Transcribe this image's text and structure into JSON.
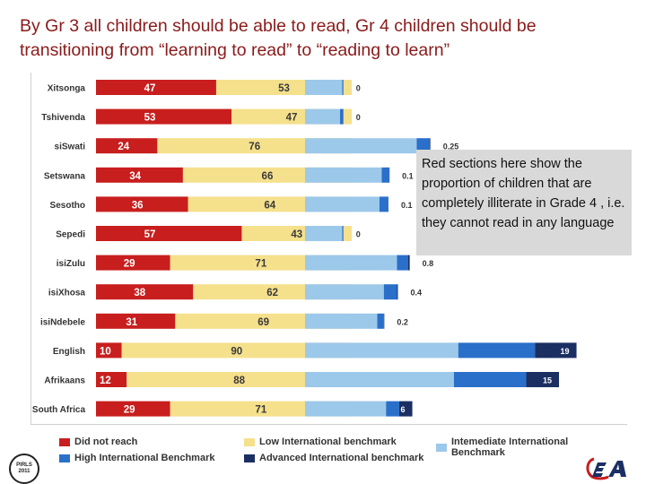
{
  "title": "By Gr 3 all children should be able to read, Gr 4 children should be transitioning from “learning to read” to “reading to learn”",
  "annotation": "Red sections here show the proportion of children that are completely illiterate in Grade 4 , i.e. they cannot read in any language",
  "logo_left_text": [
    "PIRLS",
    "2011"
  ],
  "colors": {
    "did_not_reach": "#c81e1e",
    "low": "#f5e08c",
    "intermediate": "#9cc8ea",
    "high": "#2a6fc9",
    "advanced": "#1b2f63",
    "title": "#8b1a1a"
  },
  "chart_data": {
    "type": "bar",
    "orientation": "horizontal",
    "stacked": true,
    "categories": [
      "Xitsonga",
      "Tshivenda",
      "siSwati",
      "Setswana",
      "Sesotho",
      "Sepedi",
      "isiZulu",
      "isiXhosa",
      "isiNdebele",
      "English",
      "Afrikaans",
      "South Africa"
    ],
    "left_series": [
      {
        "name": "Did not reach",
        "values": [
          47,
          53,
          24,
          34,
          36,
          57,
          29,
          38,
          31,
          10,
          12,
          29
        ]
      },
      {
        "name": "Low International benchmark",
        "values": [
          53,
          47,
          76,
          66,
          64,
          43,
          71,
          62,
          69,
          90,
          88,
          71
        ]
      }
    ],
    "right_series": [
      {
        "name": "Intemediate International Benchmark",
        "values": [
          17,
          16,
          51,
          35,
          34,
          17,
          42,
          36,
          33,
          70,
          68,
          37
        ]
      },
      {
        "name": "High International Benchmark",
        "values": [
          0.5,
          1.5,
          6,
          3.5,
          4,
          0.5,
          5,
          6,
          3,
          35,
          33,
          6
        ]
      },
      {
        "name": "Advanced International benchmark",
        "values": [
          0,
          0,
          0.25,
          0.1,
          0.1,
          0,
          0.8,
          0.4,
          0.2,
          19,
          15,
          6
        ]
      }
    ],
    "left_labels": [
      [
        "47",
        "53"
      ],
      [
        "53",
        "47"
      ],
      [
        "24",
        "76"
      ],
      [
        "34",
        "66"
      ],
      [
        "36",
        "64"
      ],
      [
        "57",
        "43"
      ],
      [
        "29",
        "71"
      ],
      [
        "38",
        "62"
      ],
      [
        "31",
        "69"
      ],
      [
        "10",
        "90"
      ],
      [
        "12",
        "88"
      ],
      [
        "29",
        "71"
      ]
    ],
    "right_labels": [
      "0",
      "0",
      "0.25",
      "0.1",
      "0.1",
      "0",
      "0.8",
      "0.4",
      "0.2",
      "19",
      "15",
      "6"
    ],
    "right_label_inside": [
      false,
      false,
      false,
      false,
      false,
      false,
      false,
      false,
      false,
      true,
      true,
      true
    ],
    "legend": [
      {
        "label": "Did not reach",
        "color_key": "did_not_reach"
      },
      {
        "label": "Low International benchmark",
        "color_key": "low"
      },
      {
        "label": "Intemediate International Benchmark",
        "color_key": "intermediate"
      },
      {
        "label": "High International Benchmark",
        "color_key": "high"
      },
      {
        "label": "Advanced International benchmark",
        "color_key": "advanced"
      }
    ],
    "legend_position": "bottom"
  }
}
